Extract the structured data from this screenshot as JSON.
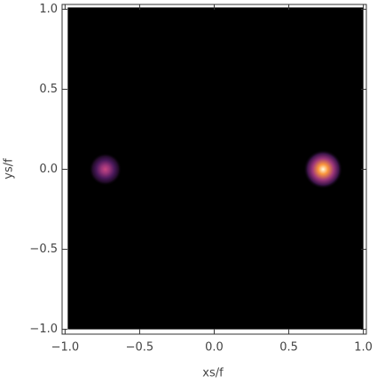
{
  "chart_data": {
    "type": "density",
    "x_label": "xs/f",
    "y_label": "ys/f",
    "xlim": [
      -1.02,
      1.02
    ],
    "ylim": [
      -1.03,
      1.03
    ],
    "xticks": [
      {
        "value": -1,
        "label": "−1.0"
      },
      {
        "value": -0.5,
        "label": "−0.5"
      },
      {
        "value": 0,
        "label": "0.0"
      },
      0.5,
      {
        "value": 1,
        "label": "1.0"
      }
    ],
    "yticks": [
      {
        "value": -1,
        "label": "−1.0"
      },
      {
        "value": -0.5,
        "label": "−0.5"
      },
      {
        "value": 0,
        "label": "0.0"
      },
      0.5,
      {
        "value": 1,
        "label": "1.0"
      }
    ],
    "background": "#000000",
    "spots": [
      {
        "x": -0.73,
        "y": 0,
        "intensity": 0.55
      },
      {
        "x": 0.73,
        "y": 0,
        "intensity": 1
      }
    ]
  }
}
